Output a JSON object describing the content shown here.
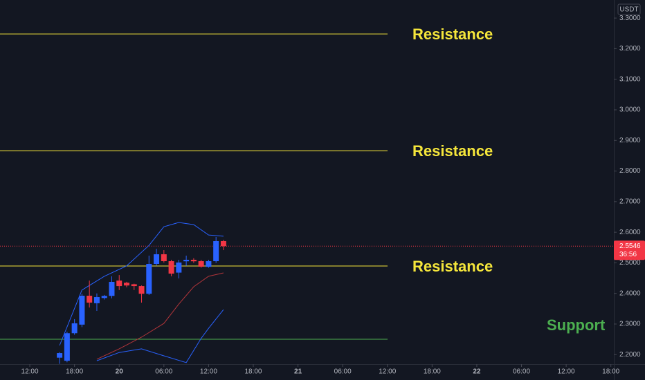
{
  "chart_data": {
    "type": "candlestick",
    "currency": "USDT",
    "xlim": [
      -16,
      66.4
    ],
    "xticks": [
      {
        "value": -12,
        "label": "12:00"
      },
      {
        "value": -6,
        "label": "18:00"
      },
      {
        "value": 0,
        "label": "20"
      },
      {
        "value": 6,
        "label": "06:00"
      },
      {
        "value": 12,
        "label": "12:00"
      },
      {
        "value": 18,
        "label": "18:00"
      },
      {
        "value": 24,
        "label": "21"
      },
      {
        "value": 30,
        "label": "06:00"
      },
      {
        "value": 36,
        "label": "12:00"
      },
      {
        "value": 42,
        "label": "18:00"
      },
      {
        "value": 48,
        "label": "22"
      },
      {
        "value": 54,
        "label": "06:00"
      },
      {
        "value": 60,
        "label": "12:00"
      },
      {
        "value": 66,
        "label": "18:00"
      }
    ],
    "ylim": [
      2.169,
      3.359
    ],
    "yticks": [
      {
        "value": 2.2,
        "label": "2.2000"
      },
      {
        "value": 2.3,
        "label": "2.3000"
      },
      {
        "value": 2.4,
        "label": "2.4000"
      },
      {
        "value": 2.5,
        "label": "2.5000"
      },
      {
        "value": 2.6,
        "label": "2.6000"
      },
      {
        "value": 2.7,
        "label": "2.7000"
      },
      {
        "value": 2.8,
        "label": "2.8000"
      },
      {
        "value": 2.9,
        "label": "2.9000"
      },
      {
        "value": 3.0,
        "label": "3.0000"
      },
      {
        "value": 3.1,
        "label": "3.1000"
      },
      {
        "value": 3.2,
        "label": "3.2000"
      },
      {
        "value": 3.3,
        "label": "3.3000"
      }
    ],
    "up_color": "#2962ff",
    "down_color": "#f23645",
    "x": [
      -8,
      -7,
      -6,
      -5,
      -4,
      -3,
      -2,
      -1,
      0,
      1,
      2,
      3,
      4,
      5,
      6,
      7,
      8,
      9,
      10,
      11,
      12,
      13,
      14
    ],
    "open": [
      2.19,
      2.18,
      2.27,
      2.298,
      2.3925,
      2.368,
      2.385,
      2.392,
      2.442,
      2.435,
      2.43,
      2.424,
      2.399,
      2.4964,
      2.528,
      2.5054,
      2.468,
      2.505,
      2.51,
      2.5054,
      2.487,
      2.5054,
      2.571
    ],
    "high": [
      2.208,
      2.275,
      2.316,
      2.399,
      2.442,
      2.4,
      2.395,
      2.456,
      2.46,
      2.438,
      2.432,
      2.426,
      2.5235,
      2.546,
      2.5415,
      2.51,
      2.51,
      2.5235,
      2.515,
      2.51,
      2.51,
      2.5844,
      2.575
    ],
    "low": [
      2.17,
      2.175,
      2.265,
      2.29,
      2.354,
      2.343,
      2.38,
      2.384,
      2.411,
      2.42,
      2.411,
      2.37,
      2.395,
      2.49,
      2.501,
      2.456,
      2.449,
      2.49,
      2.5,
      2.484,
      2.484,
      2.5,
      2.5415
    ],
    "close": [
      2.205,
      2.27,
      2.3023,
      2.3925,
      2.37,
      2.388,
      2.392,
      2.4377,
      2.424,
      2.426,
      2.424,
      2.399,
      2.4964,
      2.528,
      2.5054,
      2.4648,
      2.501,
      2.51,
      2.505,
      2.4874,
      2.5054,
      2.571,
      2.5546
    ],
    "lines": [
      {
        "color": "#2962ff",
        "x": [
          -8,
          -5,
          -2,
          1,
          4,
          6,
          8,
          10,
          12,
          14
        ],
        "values": [
          2.23,
          2.411,
          2.456,
          2.49,
          2.557,
          2.618,
          2.632,
          2.625,
          2.591,
          2.587
        ]
      },
      {
        "color": "#2962ff",
        "x": [
          -3,
          0,
          3,
          6,
          9,
          11,
          12,
          14
        ],
        "values": [
          2.18,
          2.207,
          2.219,
          2.196,
          2.174,
          2.253,
          2.286,
          2.347
        ]
      },
      {
        "color": "#b2353a",
        "x": [
          -3,
          0,
          3,
          6,
          8,
          10,
          12,
          14
        ],
        "values": [
          2.185,
          2.219,
          2.257,
          2.302,
          2.365,
          2.422,
          2.456,
          2.467
        ]
      }
    ],
    "levels": [
      {
        "label": "Resistance",
        "value": 3.248,
        "color": "#f5e63b"
      },
      {
        "label": "Resistance",
        "value": 2.8666,
        "color": "#f5e63b"
      },
      {
        "label": "Resistance",
        "value": 2.4896,
        "color": "#f5e63b"
      },
      {
        "label": "Support",
        "value": 2.2503,
        "color": "#4caf50"
      }
    ],
    "last_price": 2.5546,
    "countdown": "36:56",
    "last_price_color": "#f23645"
  }
}
